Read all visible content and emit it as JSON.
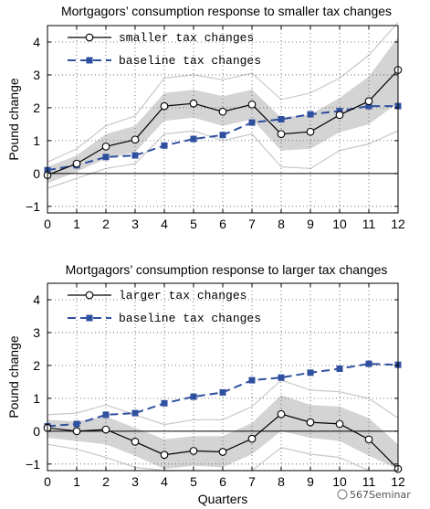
{
  "chart_data": [
    {
      "type": "line",
      "title": "Mortgagors’ consumption response to smaller tax changes",
      "ylabel": "Pound change",
      "xlabel": "",
      "x": [
        0,
        1,
        2,
        3,
        4,
        5,
        6,
        7,
        8,
        9,
        10,
        11,
        12
      ],
      "xticks": [
        "0",
        "1",
        "2",
        "3",
        "4",
        "5",
        "6",
        "7",
        "8",
        "9",
        "10",
        "11",
        "12"
      ],
      "yticks": [
        "−1",
        "0",
        "1",
        "2",
        "3",
        "4"
      ],
      "ylim": [
        -1.2,
        4.5
      ],
      "grid": "dotted",
      "legend_position": "top-left",
      "series": [
        {
          "name": "smaller tax changes",
          "style": "solid-open-circle",
          "color": "#000000",
          "values": [
            -0.05,
            0.3,
            0.82,
            1.03,
            2.05,
            2.13,
            1.88,
            2.1,
            1.2,
            1.27,
            1.78,
            2.2,
            3.15
          ]
        },
        {
          "name": "baseline tax changes",
          "style": "dashed-square",
          "color": "#2f4f9f",
          "values": [
            0.1,
            0.25,
            0.5,
            0.55,
            0.85,
            1.05,
            1.17,
            1.55,
            1.65,
            1.8,
            1.9,
            2.05,
            2.05
          ]
        }
      ],
      "band": {
        "lower": [
          -0.3,
          0.05,
          0.45,
          0.65,
          1.6,
          1.7,
          1.45,
          1.65,
          0.7,
          0.75,
          1.25,
          1.5,
          2.15
        ],
        "upper": [
          0.2,
          0.55,
          1.2,
          1.45,
          2.45,
          2.55,
          2.35,
          2.55,
          1.7,
          1.8,
          2.3,
          2.95,
          4.15
        ]
      },
      "outer_lines": {
        "lower": [
          -0.45,
          -0.15,
          0.15,
          0.3,
          1.2,
          1.3,
          1.0,
          1.2,
          0.2,
          0.15,
          0.7,
          0.9,
          1.3
        ],
        "upper": [
          0.35,
          0.75,
          1.45,
          1.75,
          2.9,
          3.0,
          2.85,
          3.05,
          2.25,
          2.45,
          2.9,
          3.6,
          4.6
        ]
      }
    },
    {
      "type": "line",
      "title": "Mortgagors’ consumption response to larger tax changes",
      "ylabel": "Pound change",
      "xlabel": "Quarters",
      "x": [
        0,
        1,
        2,
        3,
        4,
        5,
        6,
        7,
        8,
        9,
        10,
        11,
        12
      ],
      "xticks": [
        "0",
        "1",
        "2",
        "3",
        "4",
        "5",
        "6",
        "7",
        "8",
        "9",
        "10",
        "11",
        "12"
      ],
      "yticks": [
        "−1",
        "0",
        "1",
        "2",
        "3",
        "4"
      ],
      "ylim": [
        -1.2,
        4.5
      ],
      "grid": "dotted",
      "legend_position": "top-left",
      "series": [
        {
          "name": "larger tax changes",
          "style": "solid-open-circle",
          "color": "#000000",
          "values": [
            0.1,
            0.0,
            0.05,
            -0.32,
            -0.72,
            -0.6,
            -0.63,
            -0.23,
            0.52,
            0.27,
            0.22,
            -0.25,
            -1.15
          ]
        },
        {
          "name": "baseline tax changes",
          "style": "dashed-square",
          "color": "#2f4f9f",
          "values": [
            0.15,
            0.22,
            0.5,
            0.55,
            0.85,
            1.05,
            1.18,
            1.55,
            1.63,
            1.78,
            1.9,
            2.05,
            2.02
          ]
        }
      ],
      "band": {
        "lower": [
          -0.2,
          -0.3,
          -0.4,
          -0.75,
          -1.15,
          -1.05,
          -1.1,
          -0.7,
          0.0,
          -0.2,
          -0.3,
          -0.75,
          -1.15
        ],
        "upper": [
          0.35,
          0.3,
          0.45,
          0.1,
          -0.25,
          -0.15,
          -0.15,
          0.25,
          1.1,
          0.8,
          0.75,
          0.4,
          -0.4
        ]
      },
      "outer_lines": {
        "lower": [
          -0.4,
          -0.55,
          -0.8,
          -1.1,
          -1.2,
          -1.2,
          -1.2,
          -1.2,
          -0.5,
          -0.7,
          -0.8,
          -1.2,
          -1.2
        ],
        "upper": [
          0.5,
          0.55,
          0.8,
          0.5,
          0.2,
          0.35,
          0.35,
          0.75,
          1.55,
          1.25,
          1.2,
          1.0,
          0.4
        ]
      }
    }
  ],
  "watermark": "567Seminar"
}
